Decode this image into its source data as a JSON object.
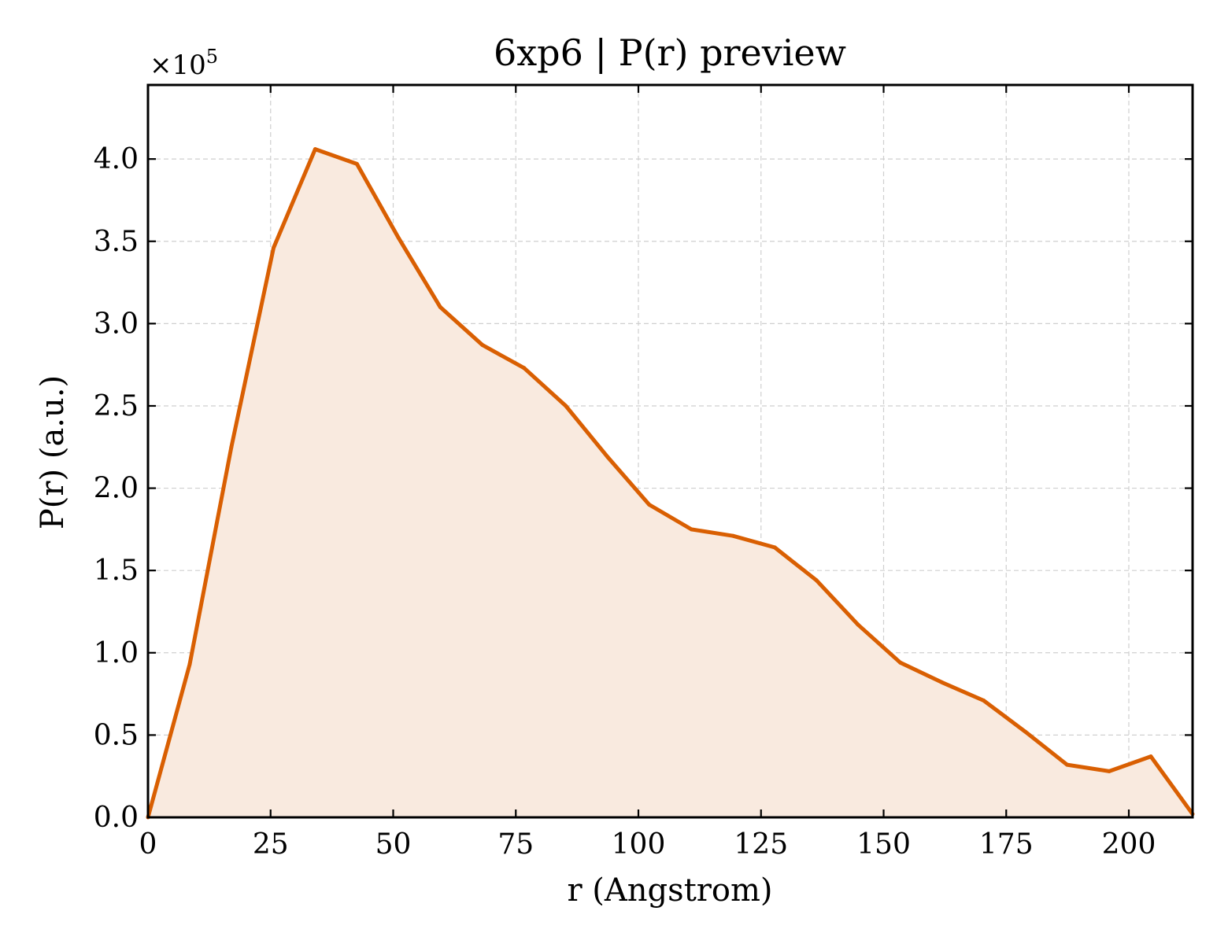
{
  "chart_data": {
    "type": "area",
    "title": "6xp6 | P(r) preview",
    "xlabel": "r (Angstrom)",
    "ylabel": "P(r) (a.u.)",
    "y_multiplier": {
      "base": "×10",
      "exponent": "5"
    },
    "xlim": [
      0,
      213
    ],
    "ylim": [
      0,
      4.45
    ],
    "x_ticks": [
      0,
      25,
      50,
      75,
      100,
      125,
      150,
      175,
      200
    ],
    "x_tick_labels": [
      "0",
      "25",
      "50",
      "75",
      "100",
      "125",
      "150",
      "175",
      "200"
    ],
    "y_ticks": [
      0.0,
      0.5,
      1.0,
      1.5,
      2.0,
      2.5,
      3.0,
      3.5,
      4.0
    ],
    "y_tick_labels": [
      "0.0",
      "0.5",
      "1.0",
      "1.5",
      "2.0",
      "2.5",
      "3.0",
      "3.5",
      "4.0"
    ],
    "grid": true,
    "ticks_direction": "in",
    "line_color": "#d95f02",
    "fill_color": "#f9eadf",
    "series": [
      {
        "x": [
          0,
          8.5,
          17,
          25.6,
          34.1,
          42.6,
          51.1,
          59.6,
          68.2,
          76.7,
          85.2,
          93.7,
          102.2,
          110.8,
          119.3,
          127.8,
          136.3,
          144.8,
          153.4,
          161.9,
          170.4,
          178.9,
          187.4,
          196,
          204.5,
          213
        ],
        "values": [
          0.0,
          0.93,
          2.25,
          3.46,
          4.06,
          3.97,
          3.52,
          3.1,
          2.87,
          2.73,
          2.5,
          2.19,
          1.9,
          1.75,
          1.71,
          1.64,
          1.44,
          1.17,
          0.94,
          0.82,
          0.71,
          0.52,
          0.32,
          0.28,
          0.37,
          0.02
        ]
      }
    ]
  }
}
